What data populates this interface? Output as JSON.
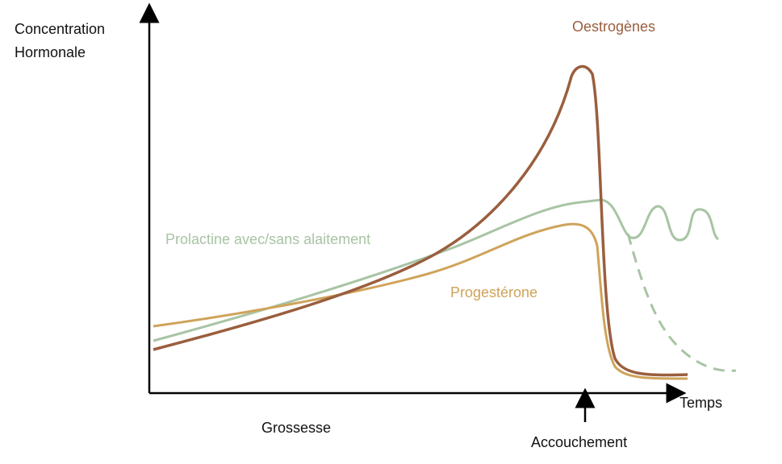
{
  "axes": {
    "y_label": [
      "Concentration",
      "Hormonale"
    ],
    "x_label": "Temps"
  },
  "curves": {
    "oestrogenes": "Oestrogènes",
    "prolactine": "Prolactine avec/sans alaitement",
    "progesterone": "Progestérone"
  },
  "phases": {
    "grossesse": "Grossesse",
    "accouchement": "Accouchement"
  }
}
